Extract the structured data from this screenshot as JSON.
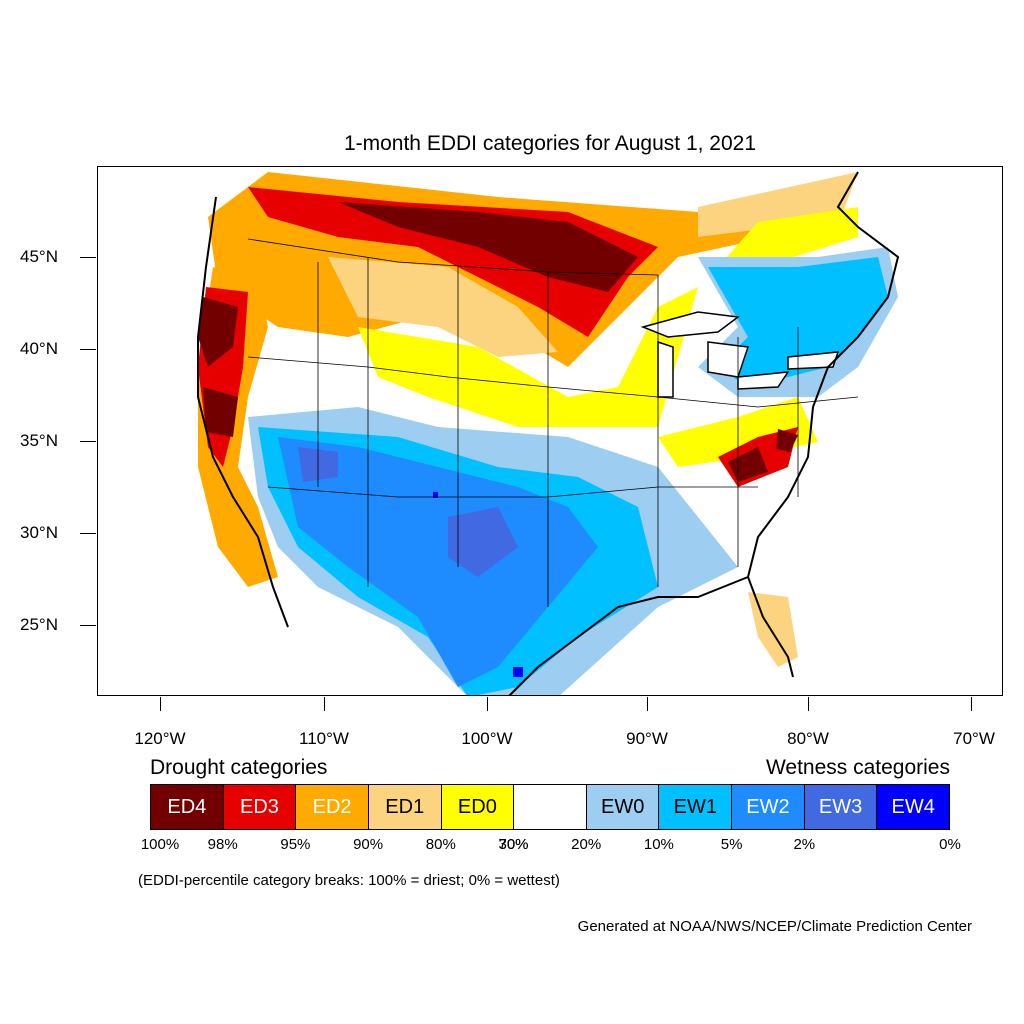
{
  "title": "1-month EDDI categories for August 1, 2021",
  "lat_labels": [
    "45°N",
    "40°N",
    "35°N",
    "30°N",
    "25°N"
  ],
  "lon_labels": [
    "120°W",
    "110°W",
    "100°W",
    "90°W",
    "80°W",
    "70°W"
  ],
  "legend": {
    "drought_heading": "Drought categories",
    "wetness_heading": "Wetness categories",
    "categories": [
      {
        "label": "ED4",
        "color": "#730000",
        "text_color": "#ffffff"
      },
      {
        "label": "ED3",
        "color": "#e60000",
        "text_color": "#ffffff"
      },
      {
        "label": "ED2",
        "color": "#ffaa00",
        "text_color": "#ffffff"
      },
      {
        "label": "ED1",
        "color": "#fcd37f",
        "text_color": "#000000"
      },
      {
        "label": "ED0",
        "color": "#ffff00",
        "text_color": "#000000"
      },
      {
        "label": "",
        "color": "#ffffff",
        "text_color": "#000000"
      },
      {
        "label": "EW0",
        "color": "#9dcdf0",
        "text_color": "#000000"
      },
      {
        "label": "EW1",
        "color": "#00c0ff",
        "text_color": "#000000"
      },
      {
        "label": "EW2",
        "color": "#1e8cff",
        "text_color": "#ffffff"
      },
      {
        "label": "EW3",
        "color": "#4169e1",
        "text_color": "#ffffff"
      },
      {
        "label": "EW4",
        "color": "#0000ff",
        "text_color": "#ffffff"
      }
    ],
    "percentiles": [
      "100%",
      "98%",
      "95%",
      "90%",
      "80%",
      "70%",
      "30%",
      "20%",
      "10%",
      "5%",
      "2%",
      "0%"
    ]
  },
  "note": "(EDDI-percentile category breaks: 100% = driest; 0% = wettest)",
  "credit": "Generated at NOAA/NWS/NCEP/Climate Prediction Center"
}
